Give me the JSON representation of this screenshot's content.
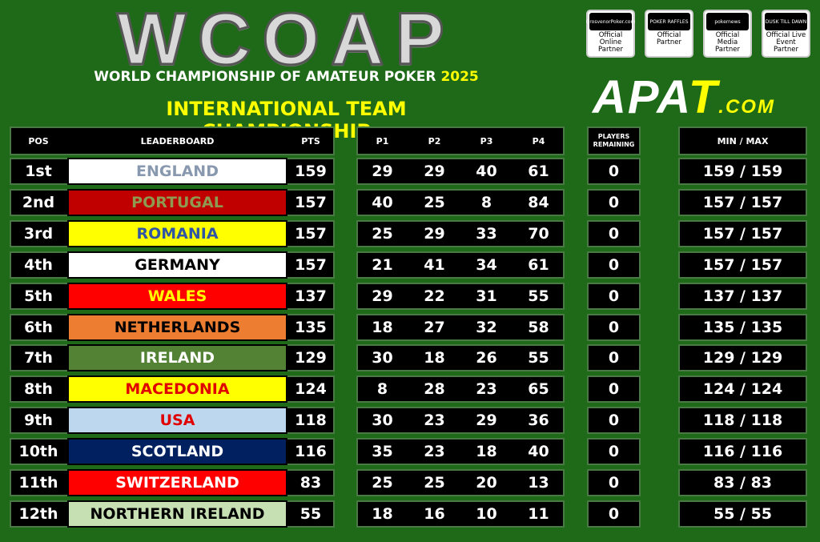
{
  "header": {
    "logo": "WCOAP",
    "subtitle": "WORLD CHAMPIONSHIP OF AMATEUR POKER",
    "year": "2025",
    "title": "INTERNATIONAL TEAM CHAMPIONSHIP"
  },
  "partners": [
    {
      "brand": "GrosvenorPoker.com",
      "label": "Official Online Partner"
    },
    {
      "brand": "POKER RAFFLES",
      "label": "Official Partner"
    },
    {
      "brand": "pokernews",
      "label": "Official Media Partner"
    },
    {
      "brand": "DUSK TILL DAWN",
      "label": "Official Live Event Partner"
    }
  ],
  "apat": {
    "main": "APA",
    "t": "T",
    "com": ".COM"
  },
  "columns": {
    "pos": "POS",
    "leaderboard": "LEADERBOARD",
    "pts": "PTS",
    "p1": "P1",
    "p2": "P2",
    "p3": "P3",
    "p4": "P4",
    "players": "PLAYERS REMAINING",
    "minmax": "MIN / MAX"
  },
  "rows": [
    {
      "pos": "1st",
      "team": "ENGLAND",
      "bg": "#ffffff",
      "fg": "#8898ae",
      "pts": "159",
      "p": [
        "29",
        "29",
        "40",
        "61"
      ],
      "rem": "0",
      "mm": "159 / 159"
    },
    {
      "pos": "2nd",
      "team": "PORTUGAL",
      "bg": "#c00000",
      "fg": "#8e9a50",
      "pts": "157",
      "p": [
        "40",
        "25",
        "8",
        "84"
      ],
      "rem": "0",
      "mm": "157 / 157"
    },
    {
      "pos": "3rd",
      "team": "ROMANIA",
      "bg": "#ffff00",
      "fg": "#2f55a4",
      "pts": "157",
      "p": [
        "25",
        "29",
        "33",
        "70"
      ],
      "rem": "0",
      "mm": "157 / 157"
    },
    {
      "pos": "4th",
      "team": "GERMANY",
      "bg": "#ffffff",
      "fg": "#000000",
      "pts": "157",
      "p": [
        "21",
        "41",
        "34",
        "61"
      ],
      "rem": "0",
      "mm": "157 / 157"
    },
    {
      "pos": "5th",
      "team": "WALES",
      "bg": "#ff0000",
      "fg": "#ffff00",
      "pts": "137",
      "p": [
        "29",
        "22",
        "31",
        "55"
      ],
      "rem": "0",
      "mm": "137 / 137"
    },
    {
      "pos": "6th",
      "team": "NETHERLANDS",
      "bg": "#ed7d31",
      "fg": "#000000",
      "pts": "135",
      "p": [
        "18",
        "27",
        "32",
        "58"
      ],
      "rem": "0",
      "mm": "135 / 135"
    },
    {
      "pos": "7th",
      "team": "IRELAND",
      "bg": "#548235",
      "fg": "#ffffff",
      "pts": "129",
      "p": [
        "30",
        "18",
        "26",
        "55"
      ],
      "rem": "0",
      "mm": "129 / 129"
    },
    {
      "pos": "8th",
      "team": "MACEDONIA",
      "bg": "#ffff00",
      "fg": "#e00000",
      "pts": "124",
      "p": [
        "8",
        "28",
        "23",
        "65"
      ],
      "rem": "0",
      "mm": "124 / 124"
    },
    {
      "pos": "9th",
      "team": "USA",
      "bg": "#bdd7ee",
      "fg": "#e00000",
      "pts": "118",
      "p": [
        "30",
        "23",
        "29",
        "36"
      ],
      "rem": "0",
      "mm": "118 / 118"
    },
    {
      "pos": "10th",
      "team": "SCOTLAND",
      "bg": "#002060",
      "fg": "#ffffff",
      "pts": "116",
      "p": [
        "35",
        "23",
        "18",
        "40"
      ],
      "rem": "0",
      "mm": "116 / 116"
    },
    {
      "pos": "11th",
      "team": "SWITZERLAND",
      "bg": "#ff0000",
      "fg": "#ffffff",
      "pts": "83",
      "p": [
        "25",
        "25",
        "20",
        "13"
      ],
      "rem": "0",
      "mm": "83 / 83"
    },
    {
      "pos": "12th",
      "team": "NORTHERN IRELAND",
      "bg": "#c6e0b4",
      "fg": "#000000",
      "pts": "55",
      "p": [
        "18",
        "16",
        "10",
        "11"
      ],
      "rem": "0",
      "mm": "55 / 55"
    }
  ]
}
